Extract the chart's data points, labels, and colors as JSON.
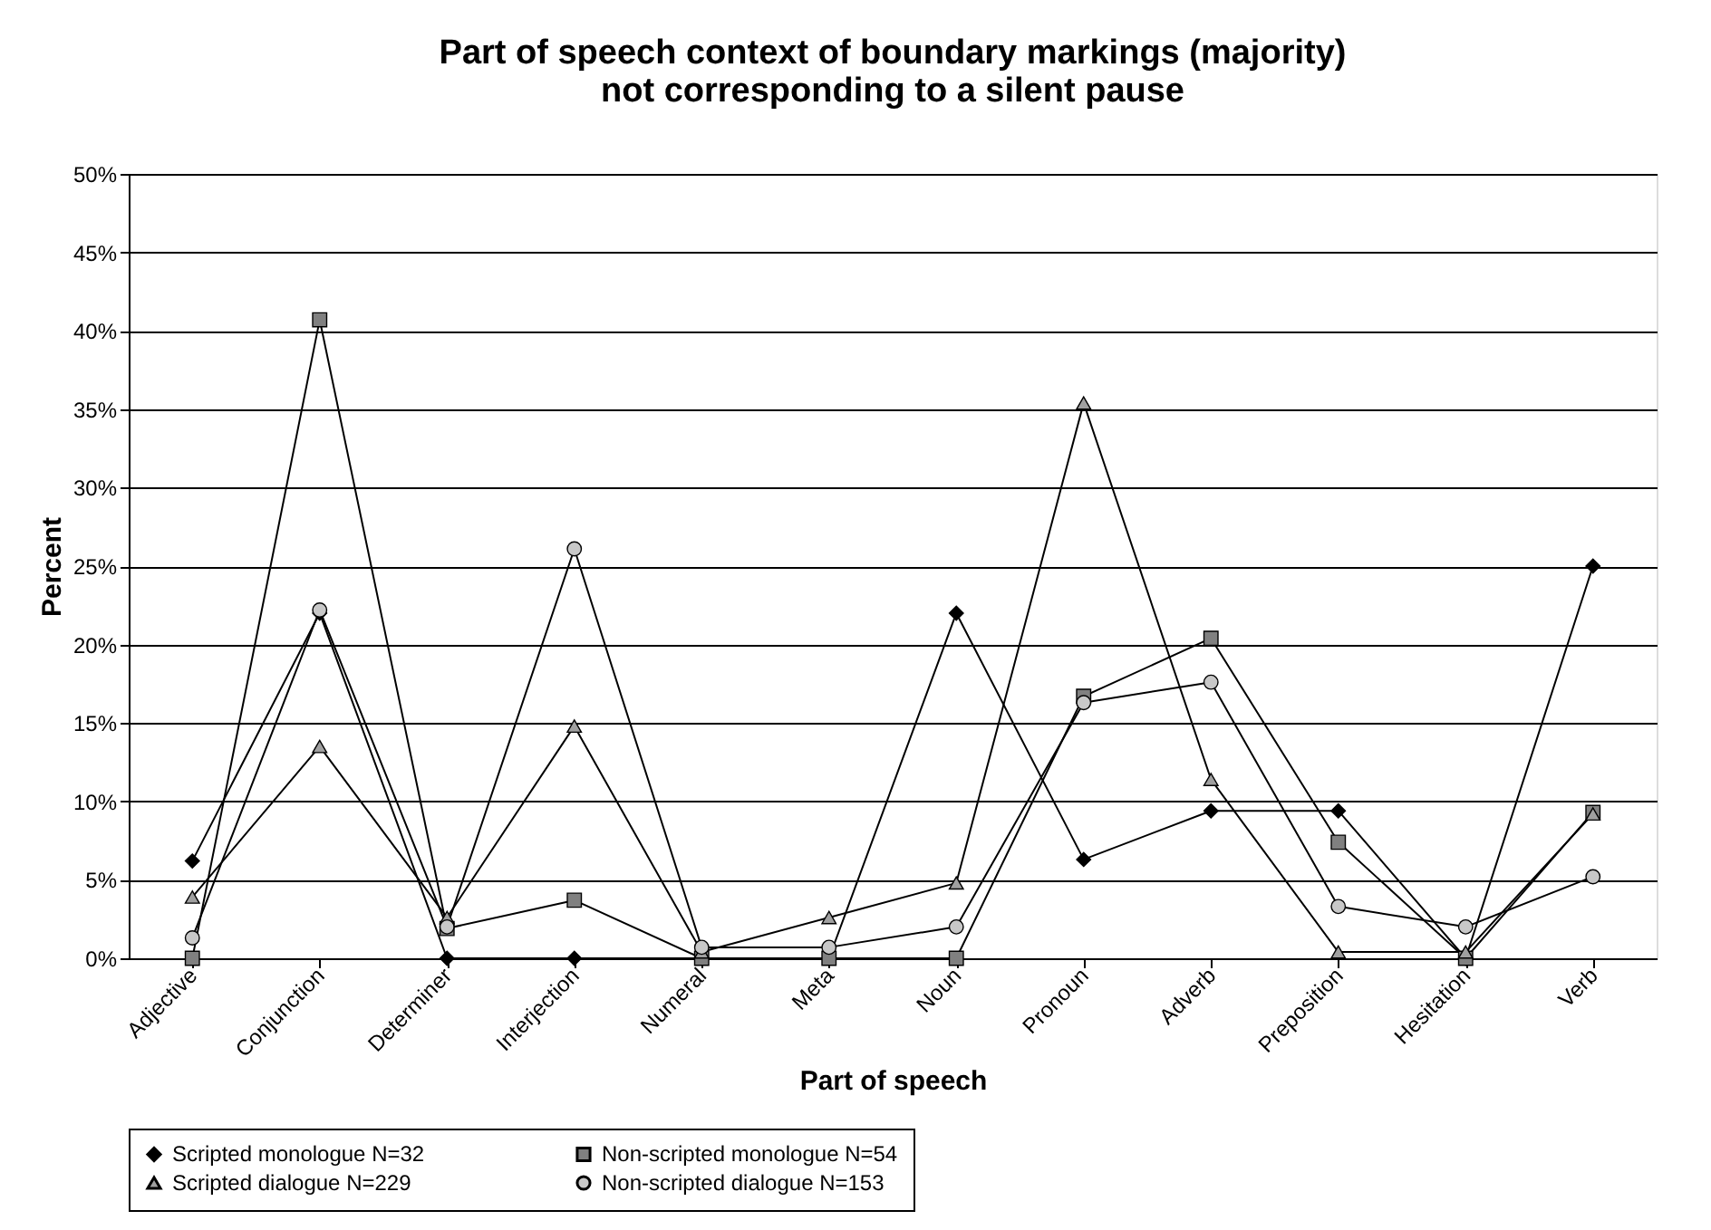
{
  "chart_data": {
    "type": "line",
    "title": "Part of speech context of boundary markings (majority)\nnot corresponding to a silent pause",
    "xlabel": "Part of speech",
    "ylabel": "Percent",
    "categories": [
      "Adjective",
      "Conjunction",
      "Determiner",
      "Interjection",
      "Numeral",
      "Meta",
      "Noun",
      "Pronoun",
      "Adverb",
      "Preposition",
      "Hesitation",
      "Verb"
    ],
    "series": [
      {
        "name": "Scripted monologue N=32",
        "color": "#000000",
        "marker": "diamond",
        "values": [
          6.2,
          22,
          0,
          0,
          0,
          0,
          22,
          6.3,
          9.4,
          9.4,
          0,
          25
        ]
      },
      {
        "name": "Non-scripted monologue N=54",
        "color": "#808080",
        "marker": "square",
        "values": [
          0,
          40.7,
          1.9,
          3.7,
          0,
          0,
          0,
          16.7,
          20.4,
          7.4,
          0,
          9.3
        ]
      },
      {
        "name": "Scripted dialogue N=229",
        "color": "#a0a0a0",
        "marker": "triangle",
        "values": [
          3.9,
          13.5,
          2.6,
          14.8,
          0.4,
          2.6,
          4.8,
          35.4,
          11.4,
          0.4,
          0.4,
          9.2
        ]
      },
      {
        "name": "Non-scripted dialogue N=153",
        "color": "#c8c8c8",
        "marker": "circle",
        "values": [
          1.3,
          22.2,
          2,
          26.1,
          0.7,
          0.7,
          2,
          16.3,
          17.6,
          3.3,
          2,
          5.2
        ]
      }
    ],
    "ylim": [
      0,
      50
    ],
    "yticks": [
      {
        "value": 0,
        "label": "0%"
      },
      {
        "value": 5,
        "label": "5%"
      },
      {
        "value": 10,
        "label": "10%"
      },
      {
        "value": 15,
        "label": "15%"
      },
      {
        "value": 20,
        "label": "20%"
      },
      {
        "value": 25,
        "label": "25%"
      },
      {
        "value": 30,
        "label": "30%"
      },
      {
        "value": 35,
        "label": "35%"
      },
      {
        "value": 40,
        "label": "40%"
      },
      {
        "value": 45,
        "label": "45%"
      },
      {
        "value": 50,
        "label": "50%"
      }
    ],
    "grid": "y",
    "legend": "bottom",
    "line_style": "solid"
  }
}
